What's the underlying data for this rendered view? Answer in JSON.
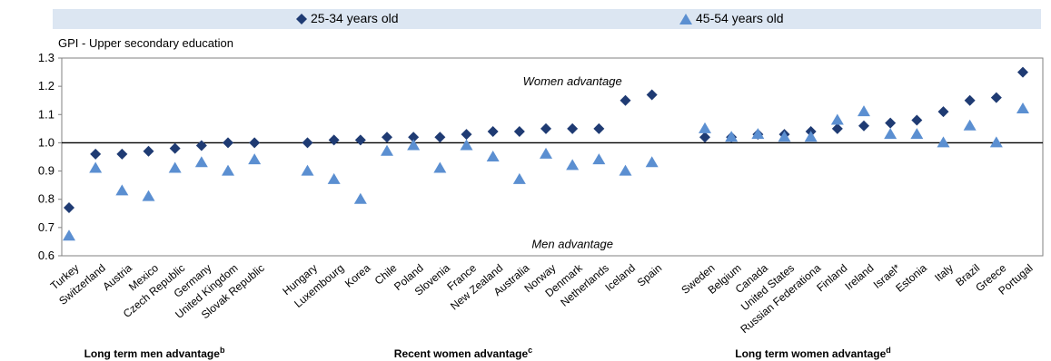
{
  "chart_data": {
    "type": "scatter",
    "ylabel": "GPI - Upper secondary education",
    "ylim": [
      0.6,
      1.3
    ],
    "yticks": [
      "0.6",
      "0.7",
      "0.8",
      "0.9",
      "1.0",
      "1.1",
      "1.2",
      "1.3"
    ],
    "reference_line": 1.0,
    "legend_position": "top",
    "categories": [
      "Turkey",
      "Switzerland",
      "Austria",
      "Mexico",
      "Czech Republic",
      "Germany",
      "United Kingdom",
      "Slovak Republic",
      "",
      "Hungary",
      "Luxembourg",
      "Korea",
      "Chile",
      "Poland",
      "Slovenia",
      "France",
      "New Zealand",
      "Australia",
      "Norway",
      "Denmark",
      "Netherlands",
      "Iceland",
      "Spain",
      "",
      "Sweden",
      "Belgium",
      "Canada",
      "United States",
      "Russian Federationa",
      "Finland",
      "Ireland",
      "Israel*",
      "Estonia",
      "Italy",
      "Brazil",
      "Greece",
      "Portugal"
    ],
    "series": [
      {
        "name": "25-34 years old",
        "marker": "diamond",
        "color": "#1f3b73",
        "values": [
          0.77,
          0.96,
          0.96,
          0.97,
          0.98,
          0.99,
          1.0,
          1.0,
          null,
          1.0,
          1.01,
          1.01,
          1.02,
          1.02,
          1.02,
          1.03,
          1.04,
          1.04,
          1.05,
          1.05,
          1.05,
          1.15,
          1.17,
          null,
          1.02,
          1.02,
          1.03,
          1.03,
          1.04,
          1.05,
          1.06,
          1.07,
          1.08,
          1.11,
          1.15,
          1.16,
          1.25
        ]
      },
      {
        "name": "45-54 years old",
        "marker": "triangle",
        "color": "#5b8fd1",
        "values": [
          0.67,
          0.91,
          0.83,
          0.81,
          0.91,
          0.93,
          0.9,
          0.94,
          null,
          0.9,
          0.87,
          0.8,
          0.97,
          0.99,
          0.91,
          0.99,
          0.95,
          0.87,
          0.96,
          0.92,
          0.94,
          0.9,
          0.93,
          null,
          1.05,
          1.02,
          1.03,
          1.02,
          1.02,
          1.08,
          1.11,
          1.03,
          1.03,
          1.0,
          1.06,
          1.0,
          1.12
        ]
      }
    ],
    "annotations": {
      "upper": "Women advantage",
      "lower": "Men advantage"
    },
    "groups": [
      {
        "label": "Long term men advantage",
        "sup": "b"
      },
      {
        "label": "Recent women advantage",
        "sup": "c"
      },
      {
        "label": "Long term women advantage",
        "sup": "d"
      }
    ]
  }
}
